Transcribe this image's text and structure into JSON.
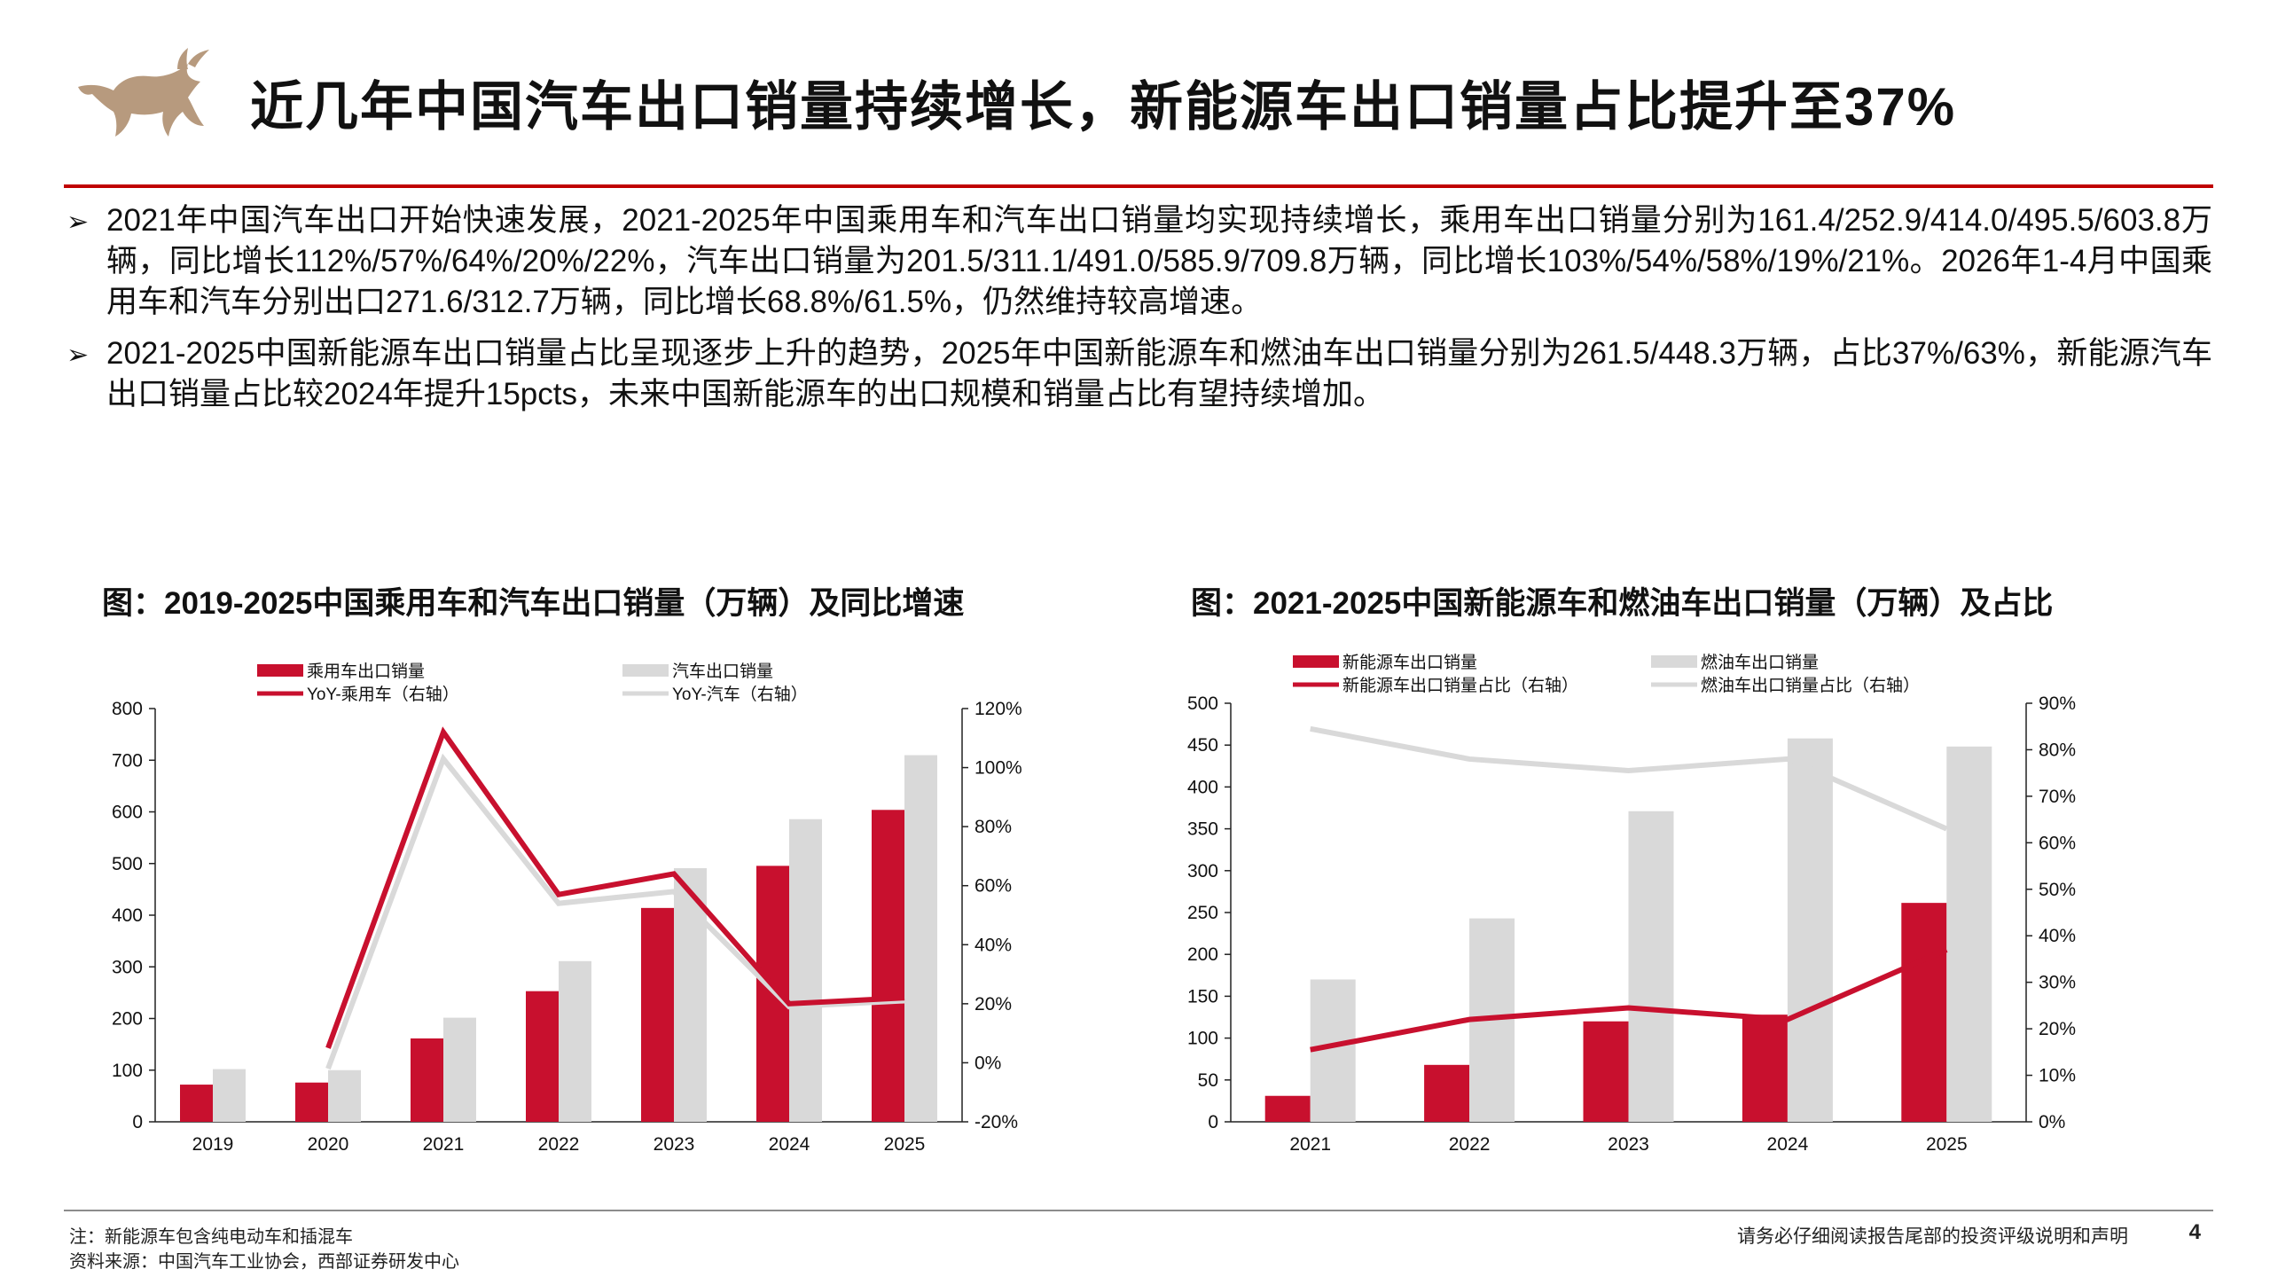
{
  "header": {
    "title": "近几年中国汽车出口销量持续增长，新能源车出口销量占比提升至37%"
  },
  "bullets": [
    {
      "text": "2021年中国汽车出口开始快速发展，2021-2025年中国乘用车和汽车出口销量均实现持续增长，乘用车出口销量分别为161.4/252.9/414.0/495.5/603.8万辆，同比增长112%/57%/64%/20%/22%，汽车出口销量为201.5/311.1/491.0/585.9/709.8万辆，同比增长103%/54%/58%/19%/21%。2026年1-4月中国乘用车和汽车分别出口271.6/312.7万辆，同比增长68.8%/61.5%，仍然维持较高增速。"
    },
    {
      "text": "2021-2025中国新能源车出口销量占比呈现逐步上升的趋势，2025年中国新能源车和燃油车出口销量分别为261.5/448.3万辆，占比37%/63%，新能源汽车出口销量占比较2024年提升15pcts，未来中国新能源车的出口规模和销量占比有望持续增加。"
    }
  ],
  "chart_data": [
    {
      "type": "bar",
      "title": "图：2019-2025中国乘用车和汽车出口销量（万辆）及同比增速",
      "categories": [
        "2019",
        "2020",
        "2021",
        "2022",
        "2023",
        "2024",
        "2025"
      ],
      "series": [
        {
          "name": "乘用车出口销量",
          "type": "bar",
          "axis": "left",
          "color": "#c8102e",
          "values": [
            72,
            76,
            161.4,
            252.9,
            414.0,
            495.5,
            603.8
          ]
        },
        {
          "name": "汽车出口销量",
          "type": "bar",
          "axis": "left",
          "color": "#d9d9d9",
          "values": [
            102,
            100,
            201.5,
            311.1,
            491.0,
            585.9,
            709.8
          ]
        },
        {
          "name": "YoY-乘用车（右轴）",
          "type": "line",
          "axis": "right",
          "color": "#c8102e",
          "values": [
            null,
            5,
            112,
            57,
            64,
            20,
            22
          ]
        },
        {
          "name": "YoY-汽车（右轴）",
          "type": "line",
          "axis": "right",
          "color": "#d9d9d9",
          "values": [
            null,
            -2,
            103,
            54,
            58,
            19,
            21
          ]
        }
      ],
      "ylim": [
        0,
        800
      ],
      "yticks": [
        0,
        100,
        200,
        300,
        400,
        500,
        600,
        700,
        800
      ],
      "y2lim": [
        -20,
        120
      ],
      "y2ticks": [
        -20,
        0,
        20,
        40,
        60,
        80,
        100,
        120
      ],
      "y2_format": "percent",
      "legend": "top"
    },
    {
      "type": "bar",
      "title": "图：2021-2025中国新能源车和燃油车出口销量（万辆）及占比",
      "categories": [
        "2021",
        "2022",
        "2023",
        "2024",
        "2025"
      ],
      "series": [
        {
          "name": "新能源车出口销量",
          "type": "bar",
          "axis": "left",
          "color": "#c8102e",
          "values": [
            31,
            68,
            120,
            128,
            261.5
          ]
        },
        {
          "name": "燃油车出口销量",
          "type": "bar",
          "axis": "left",
          "color": "#d9d9d9",
          "values": [
            170,
            243,
            371,
            458,
            448.3
          ]
        },
        {
          "name": "新能源车出口销量占比（右轴）",
          "type": "line",
          "axis": "right",
          "color": "#c8102e",
          "values": [
            15.5,
            22,
            24.5,
            22,
            37
          ]
        },
        {
          "name": "燃油车出口销量占比（右轴）",
          "type": "line",
          "axis": "right",
          "color": "#d9d9d9",
          "values": [
            84.5,
            78,
            75.5,
            78,
            63
          ]
        }
      ],
      "ylim": [
        0,
        500
      ],
      "yticks": [
        0,
        50,
        100,
        150,
        200,
        250,
        300,
        350,
        400,
        450,
        500
      ],
      "y2lim": [
        0,
        90
      ],
      "y2ticks": [
        0,
        10,
        20,
        30,
        40,
        50,
        60,
        70,
        80,
        90
      ],
      "y2_format": "percent",
      "legend": "top"
    }
  ],
  "footer": {
    "note": "注：新能源车包含纯电动车和插混车",
    "source": "资料来源：中国汽车工业协会，西部证券研发中心",
    "disclaimer": "请务必仔细阅读报告尾部的投资评级说明和声明",
    "page": "4"
  }
}
